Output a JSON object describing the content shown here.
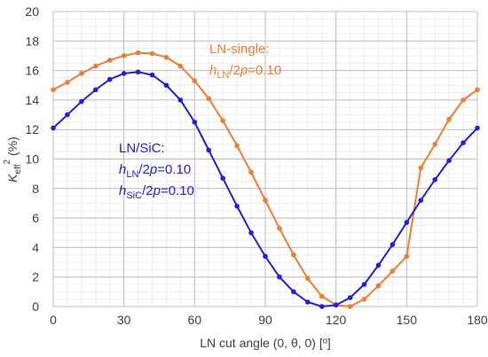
{
  "chart_data": {
    "type": "line",
    "xlabel": "LN cut angle (0, θ, 0) [º]",
    "ylabel": {
      "main": "K",
      "sub": "eff",
      "sup": "2",
      "unit": "(%)"
    },
    "xlim": [
      0,
      180
    ],
    "ylim": [
      0,
      20
    ],
    "xticks": [
      0,
      30,
      60,
      90,
      120,
      150,
      180
    ],
    "yticks": [
      0,
      2,
      4,
      6,
      8,
      10,
      12,
      14,
      16,
      18,
      20
    ],
    "grid": true,
    "minor_grid": true,
    "legend": "none",
    "series": [
      {
        "name": "LN-single",
        "color": "#ED7D31",
        "x": [
          0,
          6,
          12,
          18,
          24,
          30,
          36,
          42,
          48,
          54,
          60,
          66,
          72,
          78,
          84,
          90,
          96,
          102,
          108,
          114,
          120,
          126,
          132,
          138,
          144,
          150,
          156,
          162,
          168,
          174,
          180
        ],
        "y": [
          14.7,
          15.2,
          15.8,
          16.3,
          16.7,
          17.0,
          17.2,
          17.15,
          16.9,
          16.3,
          15.3,
          14.1,
          12.6,
          10.9,
          9.1,
          7.2,
          5.3,
          3.5,
          1.9,
          0.7,
          0.1,
          0.0,
          0.5,
          1.4,
          2.4,
          3.4,
          9.4,
          11.0,
          12.7,
          14.0,
          14.7
        ]
      },
      {
        "name": "LN/SiC",
        "color": "#1F1FE0",
        "x": [
          0,
          6,
          12,
          18,
          24,
          30,
          36,
          42,
          48,
          54,
          60,
          66,
          72,
          78,
          84,
          90,
          96,
          102,
          108,
          114,
          120,
          126,
          132,
          138,
          144,
          150,
          156,
          162,
          168,
          174,
          180
        ],
        "y": [
          12.1,
          13.0,
          13.9,
          14.7,
          15.4,
          15.8,
          15.9,
          15.7,
          15.0,
          14.0,
          12.5,
          10.6,
          8.7,
          6.8,
          5.0,
          3.4,
          2.0,
          1.0,
          0.3,
          0.0,
          0.1,
          0.6,
          1.5,
          2.8,
          4.2,
          5.7,
          7.2,
          8.6,
          9.9,
          11.1,
          12.1
        ]
      }
    ],
    "annotations": [
      {
        "series": "LN-single",
        "color": "#ED7D31",
        "lines": [
          {
            "text": "LN-single:"
          },
          {
            "parts": [
              {
                "t": "h",
                "style": "i"
              },
              {
                "t": "LN",
                "style": "sub"
              },
              {
                "t": "/2"
              },
              {
                "t": "p",
                "style": "i"
              },
              {
                "t": "=0.10"
              }
            ]
          }
        ]
      },
      {
        "series": "LN/SiC",
        "color": "#1F1FE0",
        "lines": [
          {
            "text": "LN/SiC:"
          },
          {
            "parts": [
              {
                "t": "h",
                "style": "i"
              },
              {
                "t": "LN",
                "style": "sub"
              },
              {
                "t": "/2"
              },
              {
                "t": "p",
                "style": "i"
              },
              {
                "t": "=0.10"
              }
            ]
          },
          {
            "parts": [
              {
                "t": "h",
                "style": "i"
              },
              {
                "t": "SiC",
                "style": "sub"
              },
              {
                "t": "/2"
              },
              {
                "t": "p",
                "style": "i"
              },
              {
                "t": "=0.10"
              }
            ]
          }
        ]
      }
    ]
  }
}
